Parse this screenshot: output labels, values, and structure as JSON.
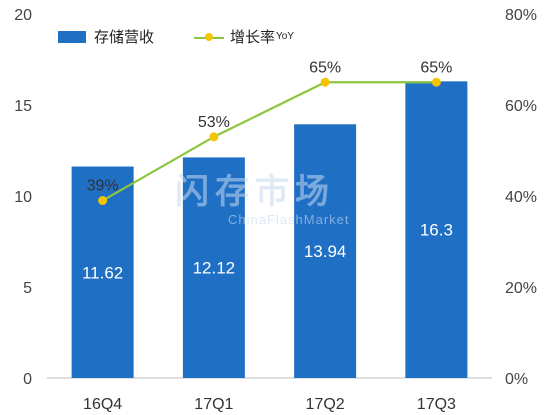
{
  "chart_data": {
    "type": "bar",
    "categories": [
      "16Q4",
      "17Q1",
      "17Q2",
      "17Q3"
    ],
    "series": [
      {
        "name": "存储营收",
        "type": "bar",
        "axis": "left",
        "values": [
          11.62,
          12.12,
          13.94,
          16.3
        ]
      },
      {
        "name": "增长率YoY",
        "type": "line",
        "axis": "right",
        "values": [
          39,
          53,
          65,
          65
        ]
      }
    ],
    "bar_labels": [
      "11.62",
      "12.12",
      "13.94",
      "16.3"
    ],
    "line_labels": [
      "39%",
      "53%",
      "65%",
      "65%"
    ],
    "y_left": {
      "min": 0,
      "max": 20,
      "ticks": [
        "0",
        "5",
        "10",
        "15",
        "20"
      ]
    },
    "y_right": {
      "min": 0,
      "max": 80,
      "ticks": [
        "0%",
        "20%",
        "40%",
        "60%",
        "80%"
      ]
    },
    "legend_position": "top-left",
    "grid": false,
    "colors": {
      "bar": "#1f6fc5",
      "line": "#8cc63f",
      "marker": "#f5c400"
    }
  },
  "legend": {
    "bar_label": "存储营收",
    "line_label": "增长率",
    "line_label_suffix": "YoY"
  },
  "watermark": {
    "main": "闪存市场",
    "sub": "ChinaFlashMarket"
  }
}
